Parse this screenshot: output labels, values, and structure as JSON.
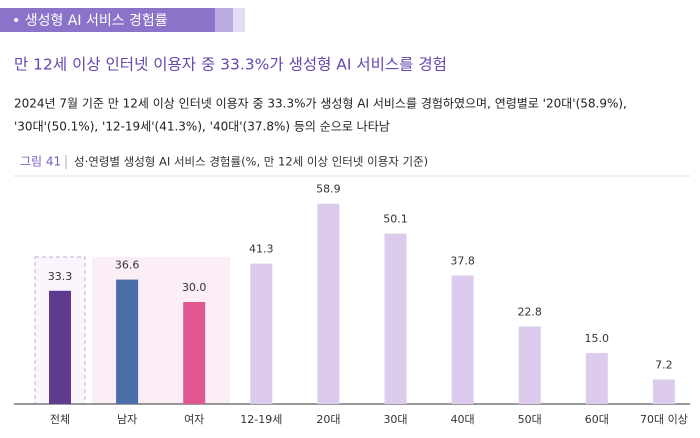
{
  "header": {
    "section": "• 생성형 AI 서비스 경험률",
    "headline": "만 12세 이상 인터넷 이용자 중 33.3%가 생성형 AI 서비스를 경험",
    "summary": [
      "2024년 7월 기준 만 12세 이상 인터넷 이용자 중 33.3%가 생성형 AI 서비스를 경험하였으며, 연령별로 '20대'(58.9%),",
      "'30대'(50.1%), '12-19세'(41.3%), '40대'(37.8%) 등의 순으로 나타남"
    ]
  },
  "chart_data": {
    "type": "bar",
    "figure_label": "그림 41",
    "title": "성·연령별 생성형 AI 서비스 경험률(%, 만 12세 이상 인터넷 이용자 기준)",
    "categories": [
      "전체",
      "남자",
      "여자",
      "12-19세",
      "20대",
      "30대",
      "40대",
      "50대",
      "60대",
      "70대 이상"
    ],
    "values": [
      33.3,
      36.6,
      30.0,
      41.3,
      58.9,
      50.1,
      37.8,
      22.8,
      15.0,
      7.2
    ],
    "value_labels": [
      "33.3",
      "36.6",
      "30.0",
      "41.3",
      "58.9",
      "50.1",
      "37.8",
      "22.8",
      "15.0",
      "7.2"
    ],
    "colors": [
      "#5e3b8e",
      "#4b6ea8",
      "#e2568f",
      "#dccbec",
      "#dccbec",
      "#dccbec",
      "#dccbec",
      "#dccbec",
      "#dccbec",
      "#dccbec"
    ]
  }
}
